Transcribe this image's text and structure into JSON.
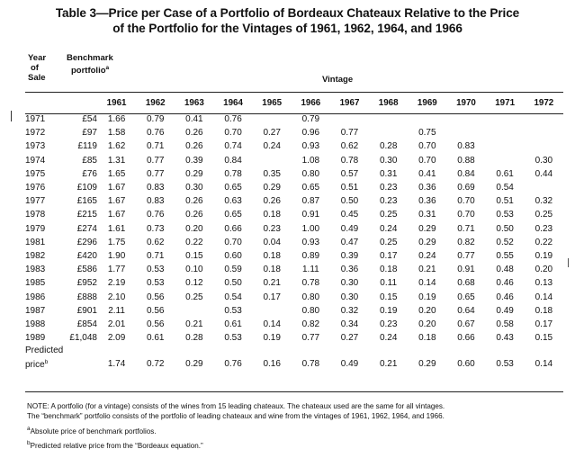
{
  "title": {
    "line1": "Table 3—Price per Case of a Portfolio of Bordeaux Chateaux Relative to the Price",
    "line2": "of the Portfolio for the Vintages of 1961, 1962, 1964, and 1966"
  },
  "headers": {
    "year_of_sale": [
      "Year",
      "of",
      "Sale"
    ],
    "benchmark_lines": [
      "Benchmark",
      "portfolio"
    ],
    "benchmark_sup": "a",
    "vintage": "Vintage",
    "vintage_years": [
      "1961",
      "1962",
      "1963",
      "1964",
      "1965",
      "1966",
      "1967",
      "1968",
      "1969",
      "1970",
      "1971",
      "1972"
    ]
  },
  "rows": [
    {
      "year": "1971",
      "bench": "£54",
      "v": [
        "1.66",
        "0.79",
        "0.41",
        "0.76",
        "",
        "0.79",
        "",
        "",
        "",
        "",
        "",
        ""
      ]
    },
    {
      "year": "1972",
      "bench": "£97",
      "v": [
        "1.58",
        "0.76",
        "0.26",
        "0.70",
        "0.27",
        "0.96",
        "0.77",
        "",
        "0.75",
        "",
        "",
        ""
      ]
    },
    {
      "year": "1973",
      "bench": "£119",
      "v": [
        "1.62",
        "0.71",
        "0.26",
        "0.74",
        "0.24",
        "0.93",
        "0.62",
        "0.28",
        "0.70",
        "0.83",
        "",
        ""
      ]
    },
    {
      "year": "1974",
      "bench": "£85",
      "v": [
        "1.31",
        "0.77",
        "0.39",
        "0.84",
        "",
        "1.08",
        "0.78",
        "0.30",
        "0.70",
        "0.88",
        "",
        "0.30"
      ]
    },
    {
      "year": "1975",
      "bench": "£76",
      "v": [
        "1.65",
        "0.77",
        "0.29",
        "0.78",
        "0.35",
        "0.80",
        "0.57",
        "0.31",
        "0.41",
        "0.84",
        "0.61",
        "0.44"
      ]
    },
    {
      "year": "1976",
      "bench": "£109",
      "v": [
        "1.67",
        "0.83",
        "0.30",
        "0.65",
        "0.29",
        "0.65",
        "0.51",
        "0.23",
        "0.36",
        "0.69",
        "0.54",
        ""
      ]
    },
    {
      "year": "1977",
      "bench": "£165",
      "v": [
        "1.67",
        "0.83",
        "0.26",
        "0.63",
        "0.26",
        "0.87",
        "0.50",
        "0.23",
        "0.36",
        "0.70",
        "0.51",
        "0.32"
      ]
    },
    {
      "year": "1978",
      "bench": "£215",
      "v": [
        "1.67",
        "0.76",
        "0.26",
        "0.65",
        "0.18",
        "0.91",
        "0.45",
        "0.25",
        "0.31",
        "0.70",
        "0.53",
        "0.25"
      ]
    },
    {
      "year": "1979",
      "bench": "£274",
      "v": [
        "1.61",
        "0.73",
        "0.20",
        "0.66",
        "0.23",
        "1.00",
        "0.49",
        "0.24",
        "0.29",
        "0.71",
        "0.50",
        "0.23"
      ]
    },
    {
      "year": "1981",
      "bench": "£296",
      "v": [
        "1.75",
        "0.62",
        "0.22",
        "0.70",
        "0.04",
        "0.93",
        "0.47",
        "0.25",
        "0.29",
        "0.82",
        "0.52",
        "0.22"
      ]
    },
    {
      "year": "1982",
      "bench": "£420",
      "v": [
        "1.90",
        "0.71",
        "0.15",
        "0.60",
        "0.18",
        "0.89",
        "0.39",
        "0.17",
        "0.24",
        "0.77",
        "0.55",
        "0.19"
      ]
    },
    {
      "year": "1983",
      "bench": "£586",
      "v": [
        "1.77",
        "0.53",
        "0.10",
        "0.59",
        "0.18",
        "1.11",
        "0.36",
        "0.18",
        "0.21",
        "0.91",
        "0.48",
        "0.20"
      ]
    },
    {
      "year": "1985",
      "bench": "£952",
      "v": [
        "2.19",
        "0.53",
        "0.12",
        "0.50",
        "0.21",
        "0.78",
        "0.30",
        "0.11",
        "0.14",
        "0.68",
        "0.46",
        "0.13"
      ]
    },
    {
      "year": "1986",
      "bench": "£888",
      "v": [
        "2.10",
        "0.56",
        "0.25",
        "0.54",
        "0.17",
        "0.80",
        "0.30",
        "0.15",
        "0.19",
        "0.65",
        "0.46",
        "0.14"
      ]
    },
    {
      "year": "1987",
      "bench": "£901",
      "v": [
        "2.11",
        "0.56",
        "",
        "0.53",
        "",
        "0.80",
        "0.32",
        "0.19",
        "0.20",
        "0.64",
        "0.49",
        "0.18"
      ]
    },
    {
      "year": "1988",
      "bench": "£854",
      "v": [
        "2.01",
        "0.56",
        "0.21",
        "0.61",
        "0.14",
        "0.82",
        "0.34",
        "0.23",
        "0.20",
        "0.67",
        "0.58",
        "0.17"
      ]
    },
    {
      "year": "1989",
      "bench": "£1,048",
      "v": [
        "2.09",
        "0.61",
        "0.28",
        "0.53",
        "0.19",
        "0.77",
        "0.27",
        "0.24",
        "0.18",
        "0.66",
        "0.43",
        "0.15"
      ]
    }
  ],
  "predicted": {
    "label_line1": "Predicted",
    "label_line2": "price",
    "label_sup": "b",
    "v": [
      "1.74",
      "0.72",
      "0.29",
      "0.76",
      "0.16",
      "0.78",
      "0.49",
      "0.21",
      "0.29",
      "0.60",
      "0.53",
      "0.14"
    ]
  },
  "notes": {
    "note_line1": "NOTE: A portfolio (for a vintage) consists of the wines from 15 leading chateaux. The chateaux used are the same for all vintages.",
    "note_line2": "The “benchmark” portfolio consists of the portfolio of leading chateaux and wine from the vintages of 1961, 1962, 1964, and 1966.",
    "footnote_a_mark": "a",
    "footnote_a": "Absolute price of benchmark portfolios.",
    "footnote_b_mark": "b",
    "footnote_b": "Predicted relative price from the “Bordeaux equation.”"
  }
}
